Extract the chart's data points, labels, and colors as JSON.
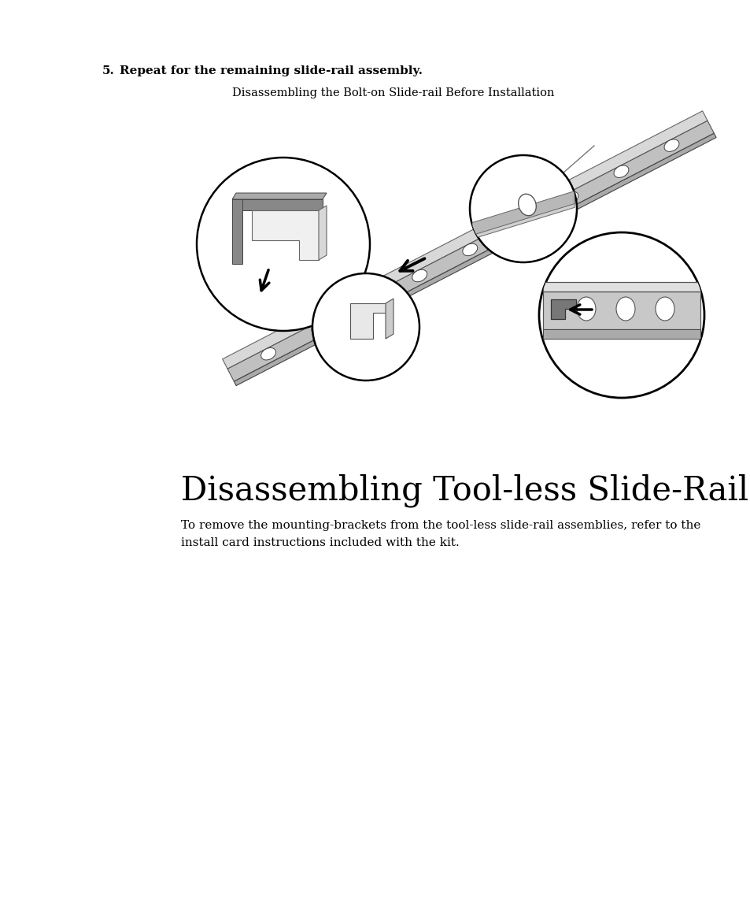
{
  "background_color": "#ffffff",
  "step_number": "5.",
  "step_text": "Repeat for the remaining slide-rail assembly.",
  "caption_text": "Disassembling the Bolt-on Slide-rail Before Installation",
  "section_title": "Disassembling Tool-less Slide-Rails",
  "body_line1": "To remove the mounting-brackets from the tool-less slide-rail assemblies, refer to the",
  "body_line2": "install card instructions included with the kit.",
  "fig_width": 9.54,
  "fig_height": 11.45,
  "fig_dpi": 100
}
